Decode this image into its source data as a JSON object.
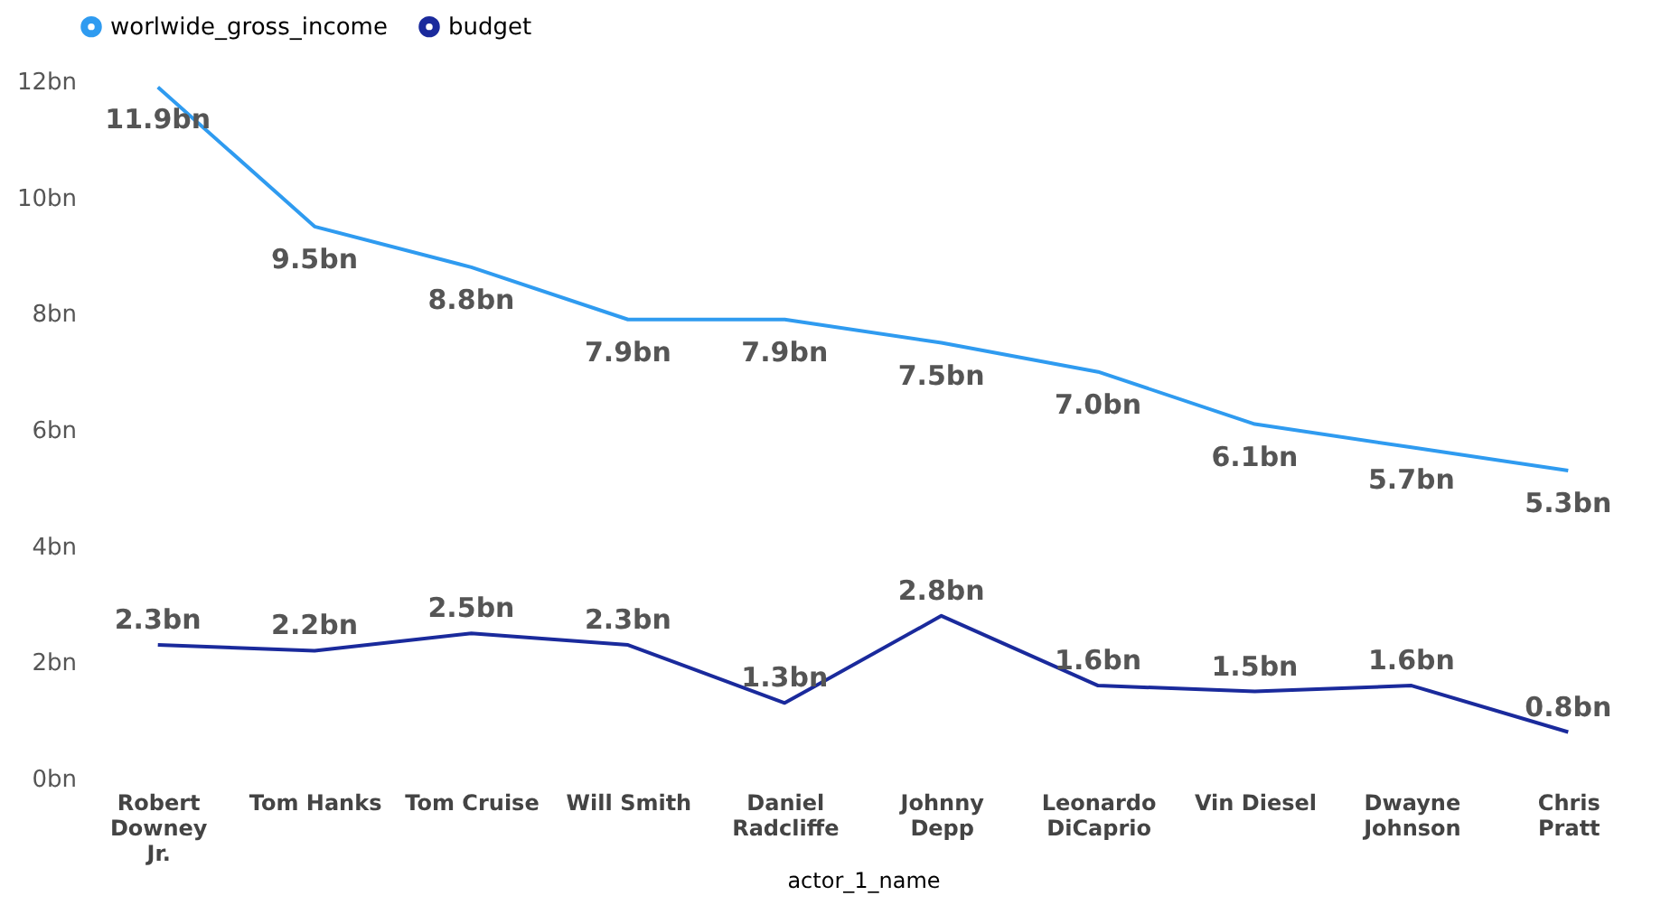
{
  "chart_data": {
    "type": "line",
    "xlabel": "actor_1_name",
    "categories": [
      "Robert Downey Jr.",
      "Tom Hanks",
      "Tom Cruise",
      "Will Smith",
      "Daniel Radcliffe",
      "Johnny Depp",
      "Leonardo DiCaprio",
      "Vin Diesel",
      "Dwayne Johnson",
      "Chris Pratt"
    ],
    "series": [
      {
        "name": "worlwide_gross_income",
        "color": "#2f9bf0",
        "values": [
          11.9,
          9.5,
          8.8,
          7.9,
          7.9,
          7.5,
          7.0,
          6.1,
          5.7,
          5.3
        ],
        "value_labels": [
          "11.9bn",
          "9.5bn",
          "8.8bn",
          "7.9bn",
          "7.9bn",
          "7.5bn",
          "7.0bn",
          "6.1bn",
          "5.7bn",
          "5.3bn"
        ]
      },
      {
        "name": "budget",
        "color": "#1a2a9c",
        "values": [
          2.3,
          2.2,
          2.5,
          2.3,
          1.3,
          2.8,
          1.6,
          1.5,
          1.6,
          0.8
        ],
        "value_labels": [
          "2.3bn",
          "2.2bn",
          "2.5bn",
          "2.3bn",
          "1.3bn",
          "2.8bn",
          "1.6bn",
          "1.5bn",
          "1.6bn",
          "0.8bn"
        ]
      }
    ],
    "ylim": [
      0,
      12
    ],
    "yticks": [
      {
        "value": 0,
        "label": "0bn"
      },
      {
        "value": 2,
        "label": "2bn"
      },
      {
        "value": 4,
        "label": "4bn"
      },
      {
        "value": 6,
        "label": "6bn"
      },
      {
        "value": 8,
        "label": "8bn"
      },
      {
        "value": 10,
        "label": "10bn"
      },
      {
        "value": 12,
        "label": "12bn"
      }
    ],
    "grid": false,
    "legend": "top left",
    "marker": "none",
    "line_style": "solid"
  }
}
